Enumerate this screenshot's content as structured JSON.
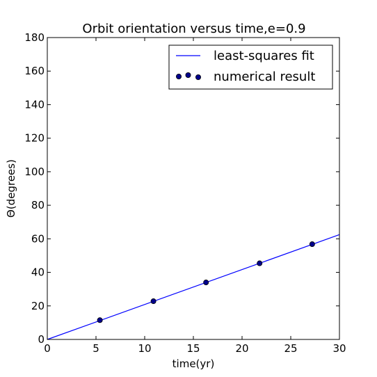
{
  "chart_data": {
    "type": "scatter",
    "title": "Orbit orientation versus time,e=0.9",
    "xlabel": "time(yr)",
    "ylabel": "Θ(degrees)",
    "xlim": [
      0,
      30
    ],
    "ylim": [
      0,
      180
    ],
    "xticks": [
      0,
      5,
      10,
      15,
      20,
      25,
      30
    ],
    "yticks": [
      0,
      20,
      40,
      60,
      80,
      100,
      120,
      140,
      160,
      180
    ],
    "grid": false,
    "legend_position": "top-right",
    "series": [
      {
        "name": "least-squares fit",
        "kind": "line",
        "color": "#0000ff",
        "x": [
          0,
          30
        ],
        "y": [
          0,
          62.5
        ]
      },
      {
        "name": "numerical result",
        "kind": "scatter",
        "color": "#00008b",
        "x": [
          5.4,
          10.9,
          16.3,
          21.8,
          27.2
        ],
        "y": [
          11.5,
          22.8,
          34.0,
          45.4,
          56.8
        ]
      }
    ]
  }
}
